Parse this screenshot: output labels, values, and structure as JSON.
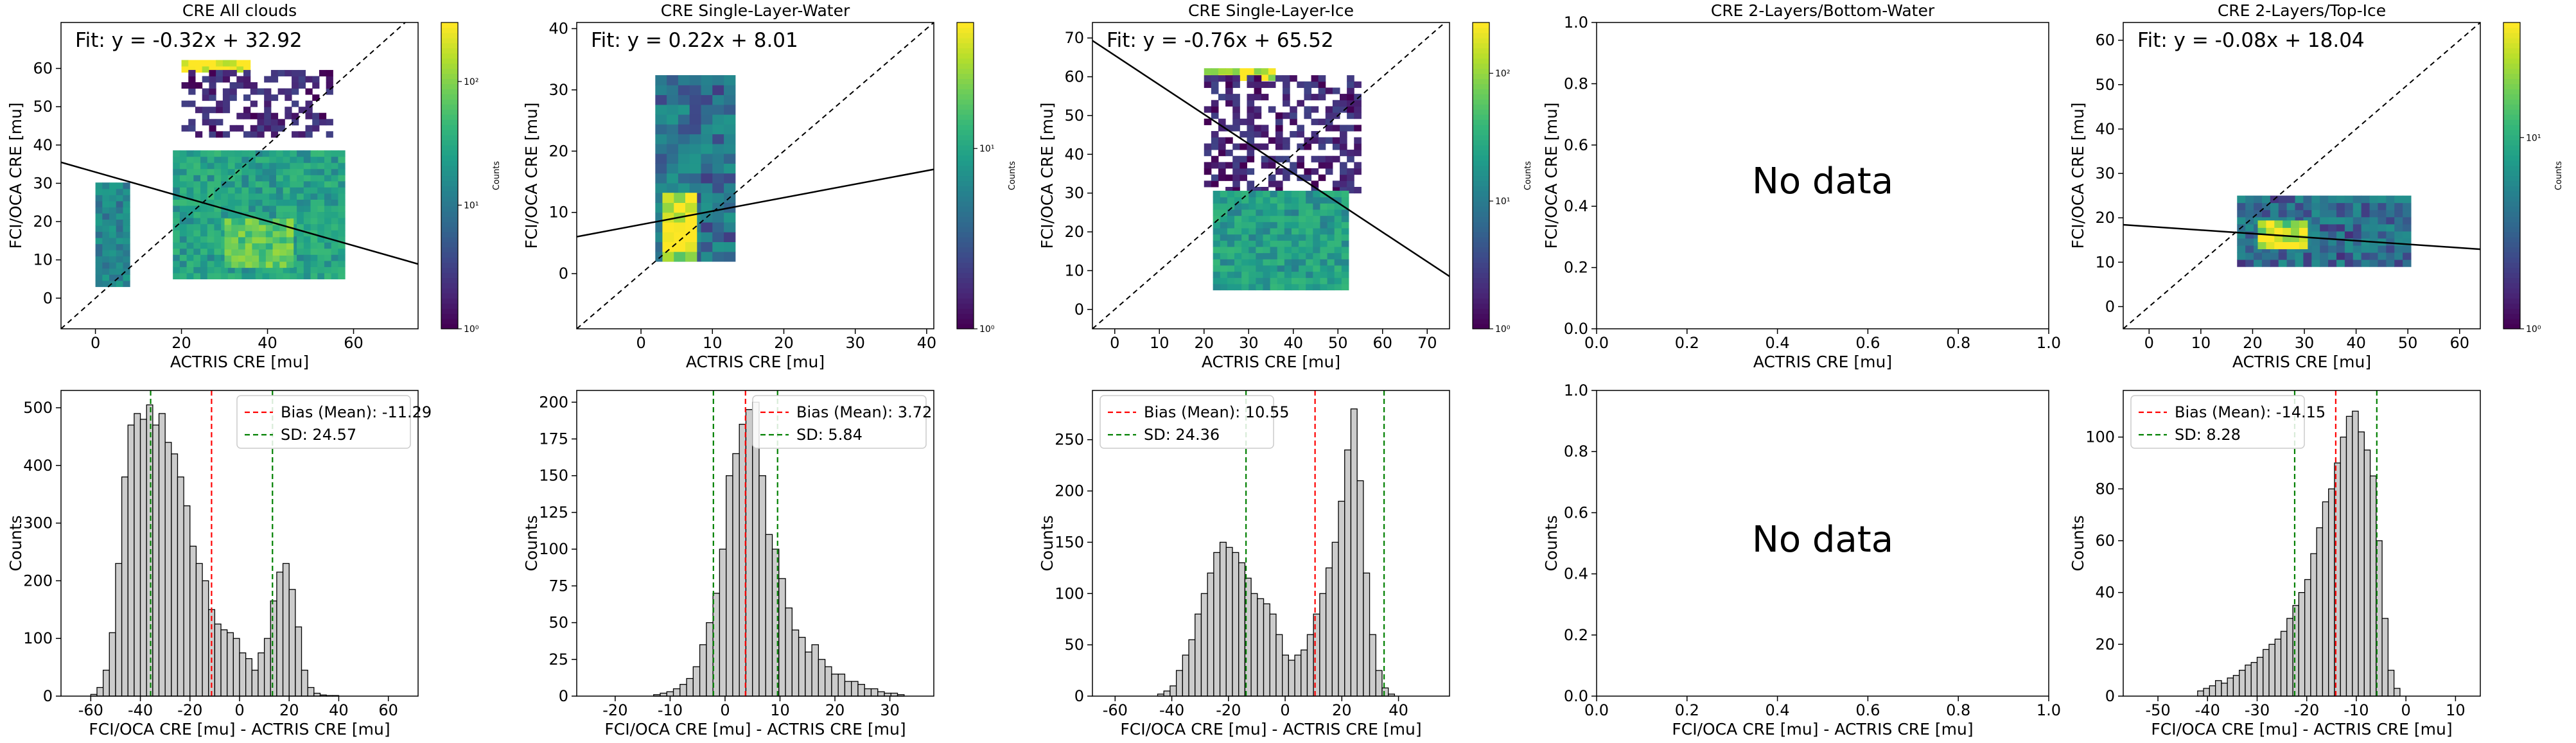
{
  "colors": {
    "hist_fill": "#cccccc",
    "bias_line": "#ff0000",
    "sd_line": "#008000",
    "fit_line": "#000000",
    "colormap": "viridis"
  },
  "no_data_label": "No data",
  "colorbar_label": "Counts",
  "chart_data": [
    {
      "type": "heatmap",
      "title": "CRE All clouds",
      "xlabel": "ACTRIS CRE [mu]",
      "ylabel": "FCI/OCA CRE [mu]",
      "xlim": [
        -8,
        75
      ],
      "ylim": [
        -8,
        72
      ],
      "xticks": [
        0,
        20,
        40,
        60
      ],
      "yticks": [
        0,
        10,
        20,
        30,
        40,
        50,
        60
      ],
      "fit_label": "Fit: y = -0.32x + 32.92",
      "fit": {
        "slope": -0.32,
        "intercept": 32.92
      },
      "colorbar": {
        "label": "Counts",
        "scale": "log",
        "min": 1,
        "max": 300,
        "ticks": [
          {
            "v": 1,
            "t": "10⁰"
          },
          {
            "v": 10,
            "t": "10¹"
          },
          {
            "v": 100,
            "t": "10²"
          }
        ]
      },
      "cells": [
        {
          "x": [
            20,
            35
          ],
          "y": [
            59,
            61
          ],
          "count": 250
        },
        {
          "x": [
            20,
            55
          ],
          "y": [
            42,
            59
          ],
          "count": 2
        },
        {
          "x": [
            0,
            8
          ],
          "y": [
            3,
            30
          ],
          "count": 15
        },
        {
          "x": [
            18,
            58
          ],
          "y": [
            5,
            38
          ],
          "count": 30
        },
        {
          "x": [
            30,
            45
          ],
          "y": [
            8,
            20
          ],
          "count": 80
        }
      ]
    },
    {
      "type": "heatmap",
      "title": "CRE Single-Layer-Water",
      "xlabel": "ACTRIS CRE [mu]",
      "ylabel": "FCI/OCA CRE [mu]",
      "xlim": [
        -9,
        41
      ],
      "ylim": [
        -9,
        41
      ],
      "xticks": [
        0,
        10,
        20,
        30,
        40
      ],
      "yticks": [
        0,
        10,
        20,
        30,
        40
      ],
      "fit_label": "Fit: y = 0.22x + 8.01",
      "fit": {
        "slope": 0.22,
        "intercept": 8.01
      },
      "colorbar": {
        "label": "Counts",
        "scale": "log",
        "min": 1,
        "max": 50,
        "ticks": [
          {
            "v": 1,
            "t": "10⁰"
          },
          {
            "v": 10,
            "t": "10¹"
          }
        ]
      },
      "cells": [
        {
          "x": [
            2,
            12
          ],
          "y": [
            2,
            32
          ],
          "count": 5
        },
        {
          "x": [
            3,
            7
          ],
          "y": [
            2,
            12
          ],
          "count": 40
        }
      ]
    },
    {
      "type": "heatmap",
      "title": "CRE Single-Layer-Ice",
      "xlabel": "ACTRIS CRE [mu]",
      "ylabel": "FCI/OCA CRE [mu]",
      "xlim": [
        -5,
        75
      ],
      "ylim": [
        -5,
        74
      ],
      "xticks": [
        0,
        10,
        20,
        30,
        40,
        50,
        60,
        70
      ],
      "yticks": [
        0,
        10,
        20,
        30,
        40,
        50,
        60,
        70
      ],
      "fit_label": "Fit: y = -0.76x + 65.52",
      "fit": {
        "slope": -0.76,
        "intercept": 65.52
      },
      "colorbar": {
        "label": "Counts",
        "scale": "log",
        "min": 1,
        "max": 250,
        "ticks": [
          {
            "v": 1,
            "t": "10⁰"
          },
          {
            "v": 10,
            "t": "10¹"
          },
          {
            "v": 100,
            "t": "10²"
          }
        ]
      },
      "cells": [
        {
          "x": [
            20,
            35
          ],
          "y": [
            59,
            61
          ],
          "count": 200
        },
        {
          "x": [
            20,
            55
          ],
          "y": [
            30,
            59
          ],
          "count": 2
        },
        {
          "x": [
            22,
            52
          ],
          "y": [
            5,
            30
          ],
          "count": 25
        }
      ]
    },
    {
      "type": "heatmap",
      "title": "CRE 2-Layers/Bottom-Water",
      "xlabel": "ACTRIS CRE [mu]",
      "ylabel": "FCI/OCA CRE [mu]",
      "xlim": [
        0,
        1
      ],
      "ylim": [
        0,
        1
      ],
      "xticks": [
        0.0,
        0.2,
        0.4,
        0.6,
        0.8,
        1.0
      ],
      "yticks": [
        0.0,
        0.2,
        0.4,
        0.6,
        0.8,
        1.0
      ],
      "no_data": true
    },
    {
      "type": "heatmap",
      "title": "CRE 2-Layers/Top-Ice",
      "xlabel": "ACTRIS CRE [mu]",
      "ylabel": "FCI/OCA CRE [mu]",
      "xlim": [
        -5,
        64
      ],
      "ylim": [
        -5,
        64
      ],
      "xticks": [
        0,
        10,
        20,
        30,
        40,
        50,
        60
      ],
      "yticks": [
        0,
        10,
        20,
        30,
        40,
        50,
        60
      ],
      "fit_label": "Fit: y = -0.08x + 18.04",
      "fit": {
        "slope": -0.08,
        "intercept": 18.04
      },
      "colorbar": {
        "label": "Counts",
        "scale": "log",
        "min": 1,
        "max": 40,
        "ticks": [
          {
            "v": 1,
            "t": "10⁰"
          },
          {
            "v": 10,
            "t": "10¹"
          }
        ]
      },
      "cells": [
        {
          "x": [
            17,
            50
          ],
          "y": [
            9,
            24
          ],
          "count": 4
        },
        {
          "x": [
            21,
            30
          ],
          "y": [
            13,
            19
          ],
          "count": 30
        }
      ]
    },
    {
      "type": "bar",
      "subtype": "histogram",
      "xlabel": "FCI/OCA CRE [mu] - ACTRIS CRE [mu]",
      "ylabel": "Counts",
      "xlim": [
        -72,
        72
      ],
      "ylim": [
        0,
        530
      ],
      "xticks": [
        -60,
        -40,
        -20,
        0,
        20,
        40,
        60
      ],
      "yticks": [
        0,
        100,
        200,
        300,
        400,
        500
      ],
      "bins": {
        "start": -60,
        "width": 2.5,
        "counts": [
          3,
          15,
          45,
          110,
          230,
          380,
          470,
          490,
          480,
          505,
          470,
          490,
          440,
          420,
          380,
          330,
          260,
          230,
          200,
          150,
          125,
          115,
          110,
          100,
          75,
          65,
          45,
          75,
          100,
          165,
          215,
          230,
          185,
          120,
          45,
          15,
          5,
          2,
          1,
          1
        ]
      },
      "bias": -11.29,
      "sd": 24.57,
      "legend": [
        "Bias (Mean): -11.29",
        "SD: 24.57"
      ]
    },
    {
      "type": "bar",
      "subtype": "histogram",
      "xlabel": "FCI/OCA CRE [mu] - ACTRIS CRE [mu]",
      "ylabel": "Counts",
      "xlim": [
        -27,
        38
      ],
      "ylim": [
        0,
        208
      ],
      "xticks": [
        -20,
        -10,
        0,
        10,
        20,
        30
      ],
      "yticks": [
        0,
        25,
        50,
        75,
        100,
        125,
        150,
        175,
        200
      ],
      "bins": {
        "start": -13,
        "width": 1.2,
        "counts": [
          1,
          2,
          3,
          5,
          8,
          12,
          20,
          35,
          50,
          70,
          100,
          150,
          165,
          185,
          195,
          200,
          150,
          110,
          100,
          80,
          60,
          45,
          40,
          30,
          35,
          25,
          20,
          15,
          15,
          10,
          10,
          8,
          5,
          5,
          3,
          2,
          2,
          1
        ]
      },
      "bias": 3.72,
      "sd": 5.84,
      "legend": [
        "Bias (Mean): 3.72",
        "SD: 5.84"
      ]
    },
    {
      "type": "bar",
      "subtype": "histogram",
      "xlabel": "FCI/OCA CRE [mu] - ACTRIS CRE [mu]",
      "ylabel": "Counts",
      "xlim": [
        -68,
        58
      ],
      "ylim": [
        0,
        298
      ],
      "xticks": [
        -60,
        -40,
        -20,
        0,
        20,
        40
      ],
      "yticks": [
        0,
        50,
        100,
        150,
        200,
        250
      ],
      "bins": {
        "start": -45,
        "width": 2.2,
        "counts": [
          2,
          5,
          10,
          25,
          40,
          55,
          80,
          100,
          120,
          140,
          150,
          145,
          140,
          130,
          115,
          100,
          95,
          90,
          80,
          60,
          40,
          35,
          40,
          45,
          60,
          80,
          100,
          125,
          150,
          190,
          240,
          280,
          210,
          120,
          60,
          25,
          8,
          2
        ]
      },
      "bias": 10.55,
      "sd": 24.36,
      "legend": [
        "Bias (Mean): 10.55",
        "SD: 24.36"
      ]
    },
    {
      "type": "bar",
      "subtype": "histogram",
      "xlabel": "FCI/OCA CRE [mu] - ACTRIS CRE [mu]",
      "ylabel": "Counts",
      "xlim": [
        0,
        1
      ],
      "ylim": [
        0,
        1
      ],
      "xticks": [
        0.0,
        0.2,
        0.4,
        0.6,
        0.8,
        1.0
      ],
      "yticks": [
        0.0,
        0.2,
        0.4,
        0.6,
        0.8,
        1.0
      ],
      "no_data": true
    },
    {
      "type": "bar",
      "subtype": "histogram",
      "xlabel": "FCI/OCA CRE [mu] - ACTRIS CRE [mu]",
      "ylabel": "Counts",
      "xlim": [
        -57,
        15
      ],
      "ylim": [
        0,
        118
      ],
      "xticks": [
        -50,
        -40,
        -30,
        -20,
        -10,
        0,
        10
      ],
      "yticks": [
        0,
        20,
        40,
        60,
        80,
        100
      ],
      "bins": {
        "start": -42,
        "width": 1.2,
        "counts": [
          2,
          3,
          4,
          6,
          5,
          7,
          8,
          10,
          12,
          13,
          15,
          18,
          20,
          22,
          25,
          30,
          35,
          40,
          45,
          55,
          65,
          75,
          80,
          90,
          100,
          108,
          110,
          102,
          95,
          85,
          60,
          30,
          10,
          3
        ]
      },
      "bias": -14.15,
      "sd": 8.28,
      "legend": [
        "Bias (Mean): -14.15",
        "SD: 8.28"
      ]
    }
  ]
}
